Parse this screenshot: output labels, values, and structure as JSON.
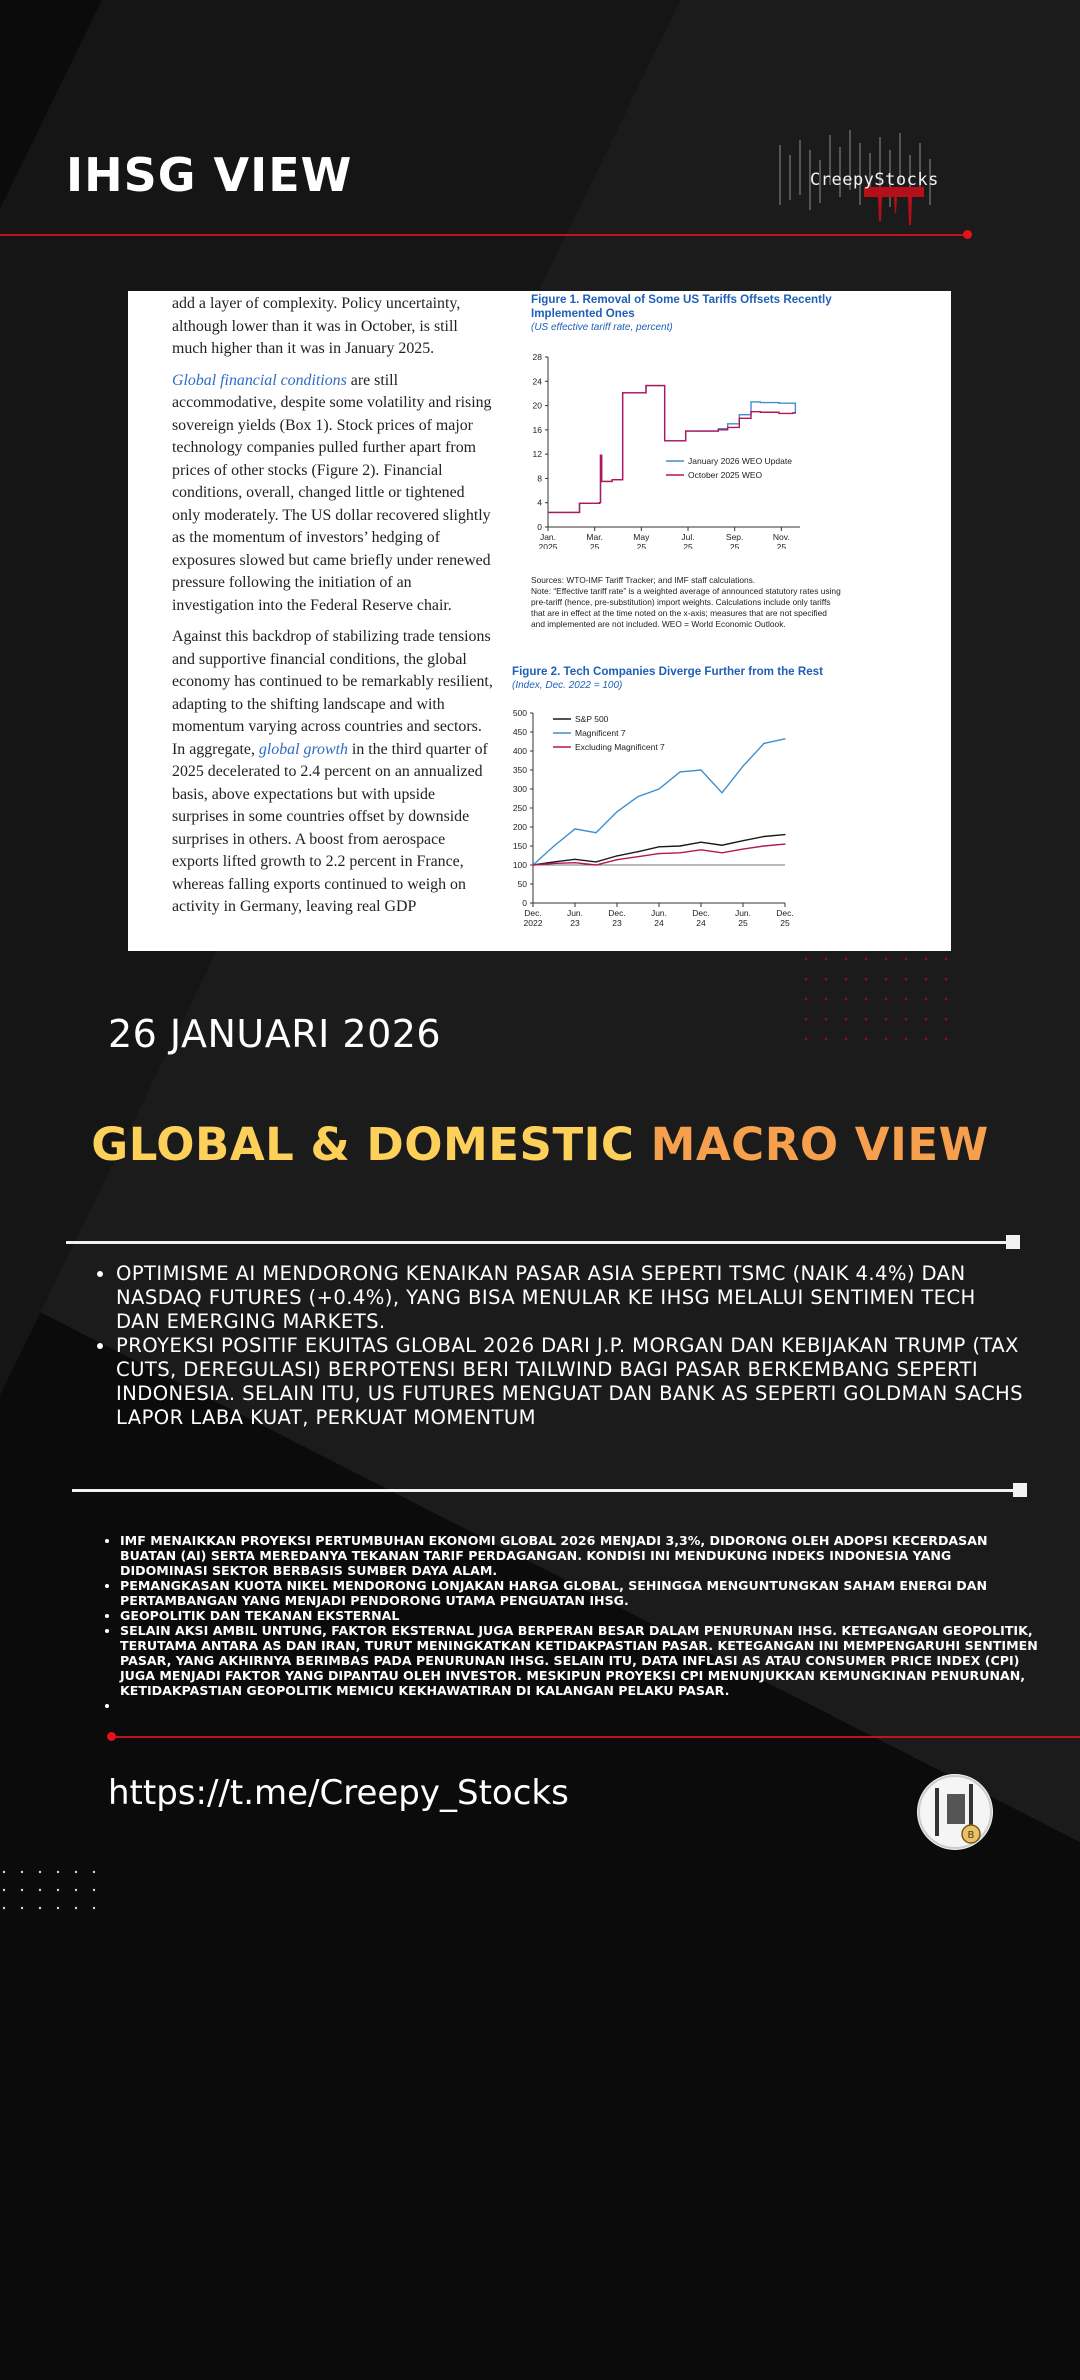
{
  "header": {
    "title": "IHSG VIEW",
    "logo_text": "CreepyStocks"
  },
  "document": {
    "paragraphs": [
      {
        "segments": [
          {
            "text": "add a layer of complexity. Policy uncertainty, although lower than it was in October, is still much higher than it was in January 2025.",
            "link": false
          }
        ]
      },
      {
        "segments": [
          {
            "text": "Global financial conditions",
            "link": true
          },
          {
            "text": " are still accommodative, despite some volatility and rising sovereign yields (Box 1). Stock prices of major technology companies pulled further apart from prices of other stocks (Figure 2). Financial conditions, overall, changed little or tightened only moderately. The US dollar recovered slightly as the momentum of investors’ hedging of exposures slowed but came briefly under renewed pressure following the initiation of an investigation into the Federal Reserve chair.",
            "link": false
          }
        ]
      },
      {
        "segments": [
          {
            "text": "Against this backdrop of stabilizing trade tensions and supportive financial conditions, the global economy has continued to be remarkably resilient, adapting to the shifting landscape and with momentum varying across countries and sectors. In aggregate, ",
            "link": false
          },
          {
            "text": "global growth",
            "link": true
          },
          {
            "text": " in the third quarter of 2025 decelerated to 2.4 percent on an annualized basis, above expectations but with upside surprises in some countries offset by downside surprises in others. A boost from aerospace exports lifted growth to 2.2 percent in France, whereas falling exports continued to weigh on activity in Germany, leaving real GDP",
            "link": false
          }
        ]
      }
    ],
    "fig1": {
      "title": "Figure 1.  Removal of Some US Tariffs Offsets Recently Implemented Ones",
      "subtitle": "(US effective tariff rate, percent)",
      "sources": "Sources: WTO-IMF Tariff Tracker; and IMF staff calculations.",
      "note": "Note: “Effective tariff rate” is a weighted average of announced statutory rates using pre-tariff (hence, pre-substitution) import weights. Calculations include only tariffs that are in effect at the time noted on the x-axis; measures that are not specified and implemented are not included. WEO = World Economic Outlook."
    },
    "fig2": {
      "title": "Figure 2.  Tech Companies Diverge Further from the Rest",
      "subtitle": "(Index, Dec. 2022 = 100)"
    }
  },
  "date_text": "26 JANUARI 2026",
  "headline": {
    "part1": "GLOBAL & DOMESTIC ",
    "part2": "MACRO VIEW"
  },
  "bullets_main": [
    "OPTIMISME AI MENDORONG KENAIKAN PASAR ASIA SEPERTI TSMC (NAIK 4.4%) DAN NASDAQ FUTURES (+0.4%), YANG BISA MENULAR KE IHSG MELALUI SENTIMEN TECH DAN EMERGING MARKETS.",
    "PROYEKSI POSITIF EKUITAS GLOBAL 2026 DARI J.P. MORGAN DAN KEBIJAKAN TRUMP (TAX CUTS, DEREGULASI) BERPOTENSI BERI TAILWIND BAGI PASAR BERKEMBANG SEPERTI INDONESIA. SELAIN ITU, US FUTURES MENGUAT DAN BANK AS SEPERTI GOLDMAN SACHS LAPOR LABA KUAT, PERKUAT MOMENTUM"
  ],
  "bullets_small": [
    "IMF MENAIKKAN PROYEKSI PERTUMBUHAN EKONOMI GLOBAL 2026 MENJADI 3,3%, DIDORONG OLEH ADOPSI KECERDASAN BUATAN (AI) SERTA MEREDANYA TEKANAN TARIF PERDAGANGAN. KONDISI INI MENDUKUNG INDEKS INDONESIA YANG DIDOMINASI SEKTOR BERBASIS SUMBER DAYA ALAM.",
    "PEMANGKASAN KUOTA NIKEL MENDORONG LONJAKAN HARGA GLOBAL, SEHINGGA MENGUNTUNGKAN SAHAM ENERGI DAN PERTAMBANGAN YANG MENJADI PENDORONG UTAMA PENGUATAN IHSG.",
    "GEOPOLITIK DAN TEKANAN EKSTERNAL",
    "SELAIN AKSI AMBIL UNTUNG, FAKTOR EKSTERNAL JUGA BERPERAN BESAR DALAM PENURUNAN IHSG. KETEGANGAN GEOPOLITIK, TERUTAMA ANTARA AS DAN IRAN, TURUT MENINGKATKAN KETIDAKPASTIAN PASAR. KETEGANGAN INI MEMPENGARUHI SENTIMEN PASAR, YANG AKHIRNYA BERIMBAS PADA PENURUNAN IHSG. SELAIN ITU, DATA INFLASI AS ATAU CONSUMER PRICE INDEX (CPI) JUGA MENJADI FAKTOR YANG DIPANTAU OLEH INVESTOR. MESKIPUN PROYEKSI CPI MENUNJUKKAN KEMUNGKINAN PENURUNAN, KETIDAKPASTIAN GEOPOLITIK MEMICU KEKHAWATIRAN DI KALANGAN PELAKU PASAR.",
    ""
  ],
  "footer": {
    "url": "https://t.me/Creepy_Stocks"
  },
  "colors": {
    "accent_red": "#c1121f",
    "headline_yellow": "#fdd05a",
    "headline_orange": "#f6a04d",
    "imf_blue": "#1f5fb8",
    "series_blue": "#3d8fd1",
    "series_crimson": "#b3165a"
  },
  "chart_data": [
    {
      "type": "line",
      "title": "Figure 1.  Removal of Some US Tariffs Offsets Recently Implemented Ones",
      "subtitle": "(US effective tariff rate, percent)",
      "x_ticks": [
        "Jan. 2025",
        "Mar. 25",
        "May 25",
        "Jul. 25",
        "Sep. 25",
        "Nov. 25"
      ],
      "y_ticks": [
        0,
        4,
        8,
        12,
        16,
        20,
        24,
        28
      ],
      "ylim": [
        0,
        28
      ],
      "x_months": [
        0,
        0.9,
        1.35,
        1.42,
        1.5,
        2.2,
        2.25,
        2.3,
        2.5,
        2.75,
        3.2,
        3.25,
        3.3,
        4.2,
        4.25,
        5.0,
        5.7,
        5.9,
        6.4,
        7.0,
        7.3,
        7.7,
        8.2,
        8.7,
        9.1,
        9.9,
        10.5,
        10.6
      ],
      "series": [
        {
          "name": "January 2026 WEO Update",
          "color": "#3d8fd1",
          "values": [
            2.4,
            2.4,
            3.9,
            3.9,
            3.9,
            4.0,
            11.8,
            7.5,
            7.5,
            7.8,
            22.1,
            22.1,
            22.1,
            23.3,
            23.3,
            14.2,
            14.2,
            15.8,
            15.8,
            15.8,
            16.2,
            17.0,
            18.5,
            20.6,
            20.5,
            20.4,
            20.4,
            18.7
          ]
        },
        {
          "name": "October 2025 WEO",
          "color": "#b3165a",
          "values": [
            2.4,
            2.4,
            3.9,
            3.9,
            3.9,
            4.0,
            11.8,
            7.5,
            7.5,
            7.8,
            22.1,
            22.1,
            22.1,
            23.3,
            23.3,
            14.2,
            14.2,
            15.8,
            15.8,
            15.8,
            16.0,
            16.4,
            17.9,
            19.0,
            18.9,
            18.7,
            18.8,
            18.8
          ]
        }
      ]
    },
    {
      "type": "line",
      "title": "Figure 2.  Tech Companies Diverge Further from the Rest",
      "subtitle": "(Index, Dec. 2022 = 100)",
      "x_ticks": [
        "Dec. 2022",
        "Jun. 23",
        "Dec. 23",
        "Jun. 24",
        "Dec. 24",
        "Jun. 25",
        "Dec. 25"
      ],
      "y_ticks": [
        0,
        50,
        100,
        150,
        200,
        250,
        300,
        350,
        400,
        450,
        500
      ],
      "ylim": [
        0,
        500
      ],
      "x_months": [
        0,
        3,
        6,
        9,
        12,
        15,
        18,
        21,
        24,
        27,
        30,
        33,
        36
      ],
      "series": [
        {
          "name": "S&P 500",
          "color": "#1a1a1a",
          "values": [
            100,
            108,
            115,
            108,
            124,
            135,
            148,
            150,
            160,
            152,
            164,
            175,
            180
          ]
        },
        {
          "name": "Magnificent 7",
          "color": "#3d8fd1",
          "values": [
            100,
            150,
            195,
            185,
            240,
            280,
            300,
            345,
            350,
            290,
            360,
            420,
            432
          ]
        },
        {
          "name": "Excluding Magnificent 7",
          "color": "#b3165a",
          "values": [
            100,
            104,
            106,
            100,
            114,
            122,
            130,
            132,
            140,
            132,
            142,
            150,
            155
          ]
        }
      ]
    }
  ]
}
